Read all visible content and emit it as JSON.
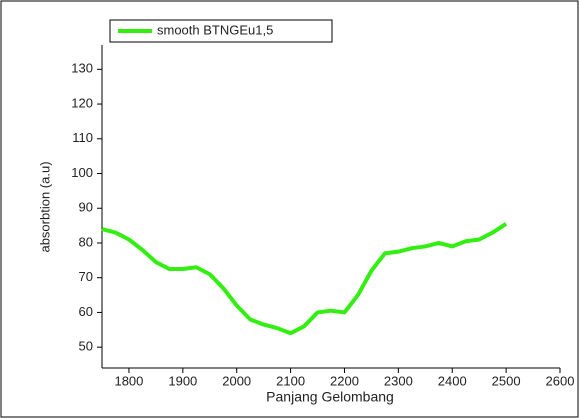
{
  "chart_data": {
    "type": "line",
    "xlabel": "Panjang Gelombang",
    "ylabel": "absorbtion (a.u)",
    "x": [
      1750,
      1775,
      1800,
      1825,
      1850,
      1875,
      1900,
      1925,
      1950,
      1975,
      2000,
      2025,
      2050,
      2075,
      2100,
      2125,
      2150,
      2175,
      2200,
      2225,
      2250,
      2275,
      2300,
      2325,
      2350,
      2375,
      2400,
      2425,
      2450,
      2475,
      2500
    ],
    "series": [
      {
        "name": "smooth BTNGEu1,5",
        "color": "#33ee11",
        "values": [
          84,
          83,
          81,
          78,
          74.5,
          72.5,
          72.5,
          73,
          71,
          67,
          62,
          58,
          56.5,
          55.5,
          54,
          56,
          60,
          60.5,
          60,
          65,
          72,
          77,
          77.5,
          78.5,
          79,
          80,
          79,
          80.5,
          81,
          83,
          85.5
        ]
      }
    ],
    "xlim": [
      1750,
      2600
    ],
    "xticks": [
      1800,
      1900,
      2000,
      2100,
      2200,
      2300,
      2400,
      2500,
      2600
    ],
    "ylim": [
      44,
      137
    ],
    "yticks": [
      50,
      60,
      70,
      80,
      90,
      100,
      110,
      120,
      130
    ],
    "legend": "top-left"
  }
}
